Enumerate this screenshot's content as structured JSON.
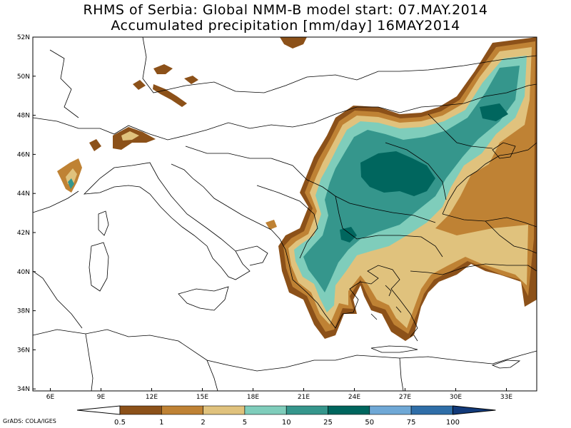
{
  "title_line1": "RHMS of Serbia: Global NMM-B model   start: 07.MAY.2014",
  "title_line2": "Accumulated precipitation [mm/day]  16MAY2014",
  "lat_labels": [
    "52N",
    "50N",
    "48N",
    "46N",
    "44N",
    "42N",
    "40N",
    "38N",
    "36N",
    "34N"
  ],
  "lon_labels": [
    "6E",
    "9E",
    "12E",
    "15E",
    "18E",
    "21E",
    "24E",
    "27E",
    "30E",
    "33E"
  ],
  "colorbar": {
    "levels": [
      "0.5",
      "1",
      "2",
      "5",
      "10",
      "25",
      "50",
      "75",
      "100"
    ],
    "colors": [
      "#8c5119",
      "#bf8234",
      "#e0c27d",
      "#7fcdbb",
      "#35968c",
      "#00665e",
      "#6fa8d6",
      "#2f6ea8",
      "#123a7a"
    ]
  },
  "credit": "GrADS: COLA/IGES",
  "palette": {
    "dark_brown": "#8c5119",
    "light_brown": "#bf8234",
    "tan": "#e0c27d",
    "light_teal": "#7fcdbb",
    "teal": "#35968c",
    "dark_teal": "#00665e"
  }
}
